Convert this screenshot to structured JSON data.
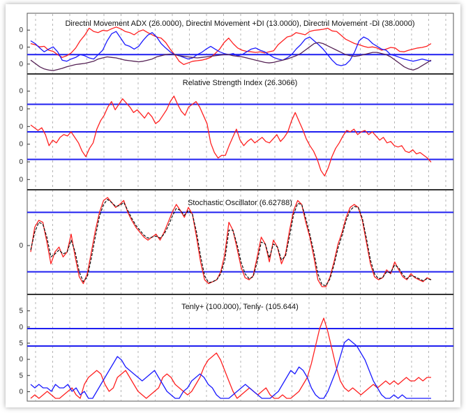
{
  "colors": {
    "red": "#ff2020",
    "blue": "#1a1aff",
    "purple": "#552255",
    "ref": "#1e1ef0",
    "grid": "#b4b4b4"
  },
  "chart_data": [
    {
      "type": "line",
      "title": "Directnl Movement ADX (26.0000), Directnl Movement +DI (13.0000), Directnl Movement -DI (38.0000)",
      "ylim": [
        0,
        100
      ],
      "tick_labels": [
        "0",
        "0",
        "0"
      ],
      "reference_lines": [
        30
      ],
      "grid": "vertical-dashed",
      "series": [
        {
          "color": "red",
          "values": [
            50,
            48,
            44,
            45,
            38,
            36,
            30,
            25,
            28,
            33,
            42,
            55,
            65,
            78,
            72,
            70,
            74,
            73,
            77,
            80,
            77,
            72,
            70,
            66,
            72,
            75,
            70,
            66,
            62,
            60,
            52,
            40,
            30,
            18,
            12,
            15,
            18,
            19,
            20,
            22,
            25,
            32,
            40,
            52,
            60,
            50,
            42,
            38,
            36,
            35,
            34,
            35,
            33,
            35,
            37,
            48,
            55,
            62,
            64,
            70,
            68,
            66,
            72,
            74,
            75,
            76,
            78,
            73,
            72,
            65,
            58,
            54,
            50,
            48,
            45,
            43,
            44,
            42,
            38,
            40,
            43,
            42,
            36,
            35,
            38,
            40,
            42,
            43,
            45,
            50
          ]
        },
        {
          "color": "blue",
          "values": [
            55,
            50,
            42,
            35,
            40,
            44,
            35,
            20,
            18,
            22,
            25,
            30,
            28,
            24,
            22,
            30,
            38,
            55,
            68,
            72,
            60,
            48,
            45,
            40,
            45,
            56,
            65,
            70,
            62,
            50,
            42,
            35,
            30,
            28,
            25,
            22,
            24,
            30,
            34,
            40,
            45,
            40,
            35,
            32,
            30,
            32,
            28,
            30,
            35,
            40,
            42,
            38,
            35,
            30,
            25,
            22,
            20,
            24,
            30,
            40,
            48,
            58,
            62,
            55,
            48,
            40,
            30,
            20,
            12,
            10,
            12,
            20,
            35,
            55,
            62,
            58,
            50,
            45,
            40,
            38,
            30,
            28,
            25,
            22,
            20,
            18,
            20,
            22,
            20,
            18
          ]
        },
        {
          "color": "purple",
          "values": [
            20,
            14,
            8,
            4,
            2,
            1,
            3,
            5,
            8,
            10,
            12,
            13,
            14,
            16,
            18,
            22,
            24,
            26,
            25,
            24,
            22,
            20,
            19,
            18,
            17,
            18,
            20,
            22,
            26,
            28,
            30,
            31,
            30,
            28,
            27,
            26,
            25,
            24,
            25,
            26,
            27,
            28,
            29,
            30,
            30,
            28,
            27,
            26,
            24,
            22,
            20,
            18,
            16,
            15,
            16,
            18,
            20,
            22,
            25,
            28,
            32,
            38,
            44,
            50,
            52,
            50,
            46,
            42,
            38,
            34,
            30,
            28,
            27,
            28,
            30,
            32,
            34,
            34,
            32,
            30,
            26,
            20,
            14,
            8,
            4,
            2,
            5,
            10,
            15,
            20
          ]
        }
      ]
    },
    {
      "type": "line",
      "title": "Relative Strength Index (26.3066)",
      "ylim": [
        10,
        90
      ],
      "tick_labels": [
        "0",
        "0",
        "0",
        "0",
        "0",
        "0"
      ],
      "reference_lines": [
        30,
        50,
        70
      ],
      "grid": "vertical-dashed",
      "series": [
        {
          "color": "red",
          "values": [
            55,
            53,
            51,
            53,
            48,
            40,
            44,
            42,
            46,
            48,
            47,
            50,
            46,
            42,
            36,
            32,
            38,
            42,
            52,
            58,
            62,
            68,
            72,
            66,
            70,
            74,
            71,
            68,
            64,
            66,
            63,
            60,
            64,
            61,
            56,
            58,
            62,
            66,
            72,
            76,
            70,
            65,
            62,
            68,
            70,
            72,
            68,
            62,
            56,
            42,
            35,
            31,
            33,
            33,
            40,
            46,
            52,
            44,
            40,
            43,
            45,
            42,
            44,
            46,
            43,
            42,
            45,
            48,
            43,
            46,
            50,
            58,
            64,
            58,
            52,
            45,
            40,
            36,
            30,
            22,
            18,
            24,
            32,
            38,
            42,
            47,
            51,
            50,
            52,
            48,
            50,
            51,
            48,
            50,
            47,
            44,
            46,
            42,
            43,
            40,
            39,
            40,
            36,
            35,
            37,
            34,
            35,
            33,
            31,
            28
          ]
        }
      ]
    },
    {
      "type": "line",
      "title": "Stochastic Oscillator (6.62788)",
      "ylim": [
        0,
        100
      ],
      "tick_labels": [
        "0"
      ],
      "reference_lines": [
        20,
        80
      ],
      "grid": "vertical-dashed",
      "series": [
        {
          "color": "red",
          "values": [
            40,
            65,
            72,
            70,
            50,
            28,
            40,
            45,
            35,
            40,
            58,
            35,
            15,
            8,
            18,
            40,
            62,
            80,
            92,
            95,
            90,
            85,
            88,
            92,
            80,
            72,
            65,
            60,
            55,
            52,
            55,
            58,
            52,
            60,
            70,
            80,
            88,
            82,
            75,
            85,
            78,
            55,
            30,
            12,
            8,
            10,
            12,
            20,
            38,
            70,
            62,
            44,
            25,
            14,
            12,
            16,
            35,
            55,
            48,
            30,
            52,
            45,
            28,
            38,
            62,
            82,
            92,
            88,
            70,
            55,
            35,
            12,
            5,
            5,
            15,
            30,
            48,
            60,
            75,
            85,
            88,
            85,
            72,
            50,
            28,
            15,
            12,
            14,
            22,
            18,
            30,
            22,
            15,
            12,
            18,
            14,
            12,
            10,
            14,
            12
          ]
        },
        {
          "color": "black-dashed",
          "values": [
            42,
            60,
            70,
            68,
            55,
            35,
            38,
            42,
            38,
            40,
            52,
            40,
            20,
            10,
            15,
            34,
            56,
            76,
            88,
            93,
            90,
            86,
            87,
            90,
            82,
            74,
            67,
            62,
            57,
            54,
            55,
            56,
            54,
            58,
            66,
            76,
            84,
            82,
            77,
            82,
            78,
            60,
            36,
            16,
            9,
            10,
            12,
            18,
            32,
            62,
            62,
            48,
            30,
            18,
            13,
            15,
            30,
            50,
            48,
            34,
            48,
            45,
            32,
            36,
            56,
            78,
            89,
            88,
            74,
            58,
            40,
            18,
            7,
            6,
            13,
            27,
            44,
            57,
            72,
            82,
            86,
            85,
            74,
            54,
            32,
            18,
            13,
            14,
            20,
            19,
            27,
            24,
            17,
            13,
            16,
            15,
            13,
            11,
            13,
            12
          ]
        }
      ]
    },
    {
      "type": "line",
      "title": "Tenly+ (100.000), Tenly- (105.644)",
      "ylim": [
        0,
        29
      ],
      "tick_labels": [
        "5",
        "0",
        "5",
        "0",
        "5",
        "0"
      ],
      "reference_lines": [
        20,
        15
      ],
      "grid": "vertical-dashed",
      "series": [
        {
          "color": "red",
          "values": [
            0,
            1,
            0,
            1,
            2,
            1,
            0,
            0,
            1,
            2,
            3,
            1,
            0,
            4,
            6,
            7,
            8,
            7,
            4,
            2,
            3,
            6,
            7,
            8,
            6,
            4,
            2,
            1,
            0,
            1,
            2,
            3,
            6,
            7,
            6,
            4,
            3,
            2,
            1,
            2,
            4,
            6,
            9,
            11,
            12,
            13,
            11,
            8,
            5,
            2,
            0,
            1,
            2,
            3,
            2,
            1,
            2,
            3,
            1,
            0,
            0,
            1,
            0,
            0,
            1,
            2,
            4,
            6,
            10,
            15,
            20,
            23,
            19,
            14,
            9,
            5,
            3,
            2,
            3,
            2,
            1,
            2,
            3,
            4,
            3,
            4,
            5,
            4,
            5,
            4,
            5,
            6,
            5,
            5,
            6,
            5,
            6,
            6
          ]
        },
        {
          "color": "blue",
          "values": [
            4,
            3,
            4,
            3,
            3,
            2,
            4,
            3,
            3,
            4,
            2,
            3,
            1,
            2,
            0,
            0,
            2,
            4,
            6,
            8,
            10,
            12,
            11,
            9,
            8,
            7,
            6,
            5,
            6,
            7,
            8,
            6,
            4,
            2,
            1,
            0,
            0,
            2,
            3,
            5,
            6,
            7,
            6,
            4,
            3,
            1,
            0,
            0,
            0,
            1,
            2,
            3,
            4,
            3,
            2,
            1,
            0,
            0,
            0,
            1,
            2,
            4,
            6,
            8,
            7,
            9,
            8,
            6,
            3,
            1,
            0,
            0,
            2,
            5,
            8,
            12,
            16,
            17,
            16,
            15,
            13,
            11,
            8,
            5,
            3,
            1,
            0,
            0,
            1,
            0,
            1,
            0,
            0,
            0,
            0,
            0,
            0,
            0
          ]
        }
      ]
    }
  ]
}
